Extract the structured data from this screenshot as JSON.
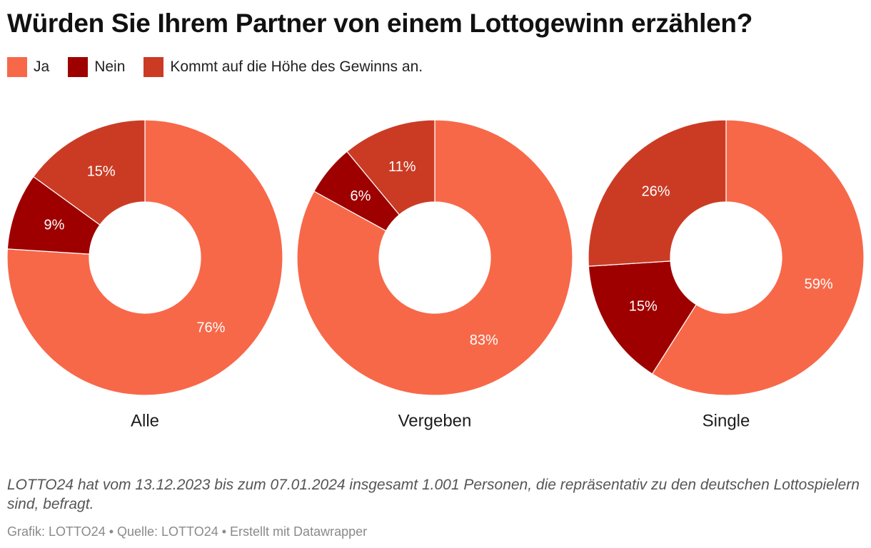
{
  "title": "Würden Sie Ihrem Partner von einem Lottogewinn erzählen?",
  "legend": [
    {
      "label": "Ja",
      "color": "#f76849"
    },
    {
      "label": "Nein",
      "color": "#9e0000"
    },
    {
      "label": "Kommt auf die Höhe des Gewinns an.",
      "color": "#cb3b24"
    }
  ],
  "chart_data": {
    "type": "pie",
    "subtype": "donut",
    "categories": [
      "Ja",
      "Nein",
      "Kommt auf die Höhe des Gewinns an."
    ],
    "series": [
      {
        "name": "Alle",
        "values": [
          76,
          9,
          15
        ],
        "labels": [
          "76%",
          "9%",
          "15%"
        ]
      },
      {
        "name": "Vergeben",
        "values": [
          83,
          6,
          11
        ],
        "labels": [
          "83%",
          "6%",
          "11%"
        ]
      },
      {
        "name": "Single",
        "values": [
          59,
          15,
          26
        ],
        "labels": [
          "59%",
          "15%",
          "26%"
        ]
      }
    ],
    "colors": [
      "#f76849",
      "#9e0000",
      "#cb3b24"
    ],
    "title": "Würden Sie Ihrem Partner von einem Lottogewinn erzählen?"
  },
  "notes": "LOTTO24 hat vom 13.12.2023 bis zum 07.01.2024 insgesamt 1.001 Personen, die repräsentativ zu den deutschen Lottospielern sind, befragt.",
  "footer": "Grafik: LOTTO24 • Quelle: LOTTO24 • Erstellt mit Datawrapper"
}
